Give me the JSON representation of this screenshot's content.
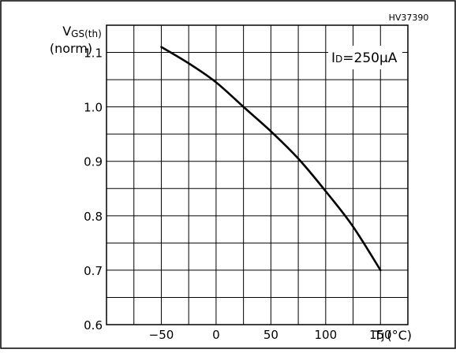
{
  "chart_data": {
    "type": "line",
    "figure_code": "HV37390",
    "ylabel_main": "V",
    "ylabel_sub": "GS(th)",
    "ylabel_unit": "(norm)",
    "xlabel_main": "T",
    "xlabel_sub": "J",
    "xlabel_unit": "(°C)",
    "annotation_main": "I",
    "annotation_sub": "D",
    "annotation_value": "=250µA",
    "xlim": [
      -100,
      175
    ],
    "ylim": [
      0.6,
      1.15
    ],
    "x_tick_values": [
      -50,
      0,
      50,
      100,
      150
    ],
    "x_tick_labels": [
      "−50",
      "0",
      "50",
      "100",
      "150"
    ],
    "y_tick_values": [
      0.6,
      0.7,
      0.8,
      0.9,
      1.0,
      1.1
    ],
    "y_tick_labels": [
      "0.6",
      "0.7",
      "0.8",
      "0.9",
      "1.0",
      "1.1"
    ],
    "x_grid_step": 25,
    "y_grid_step": 0.05,
    "grid": true,
    "series": [
      {
        "x": [
          -50,
          -25,
          0,
          25,
          50,
          75,
          100,
          125,
          150
        ],
        "values": [
          1.11,
          1.08,
          1.045,
          1.0,
          0.955,
          0.905,
          0.845,
          0.78,
          0.7
        ]
      }
    ]
  }
}
